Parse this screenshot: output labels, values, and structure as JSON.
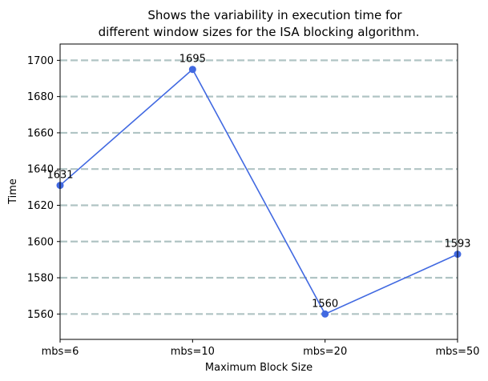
{
  "chart_data": {
    "type": "line",
    "title_lines": [
      "Shows the variability in execution time for",
      "different window sizes for the ISA blocking algorithm."
    ],
    "xlabel": "Maximum Block Size",
    "ylabel": "Time",
    "categories": [
      "mbs=6",
      "mbs=10",
      "mbs=20",
      "mbs=50"
    ],
    "series": [
      {
        "values": [
          1631,
          1695,
          1560,
          1593
        ],
        "color": "#4169e1",
        "marker": "circle"
      }
    ],
    "data_labels": [
      "1631",
      "1695",
      "1560",
      "1593"
    ],
    "ylim": [
      1546,
      1709
    ],
    "yticks": [
      1560,
      1580,
      1600,
      1620,
      1640,
      1660,
      1680,
      1700
    ],
    "grid": {
      "axis": "y",
      "style": "dashed",
      "color": "#b0c4c4"
    }
  }
}
